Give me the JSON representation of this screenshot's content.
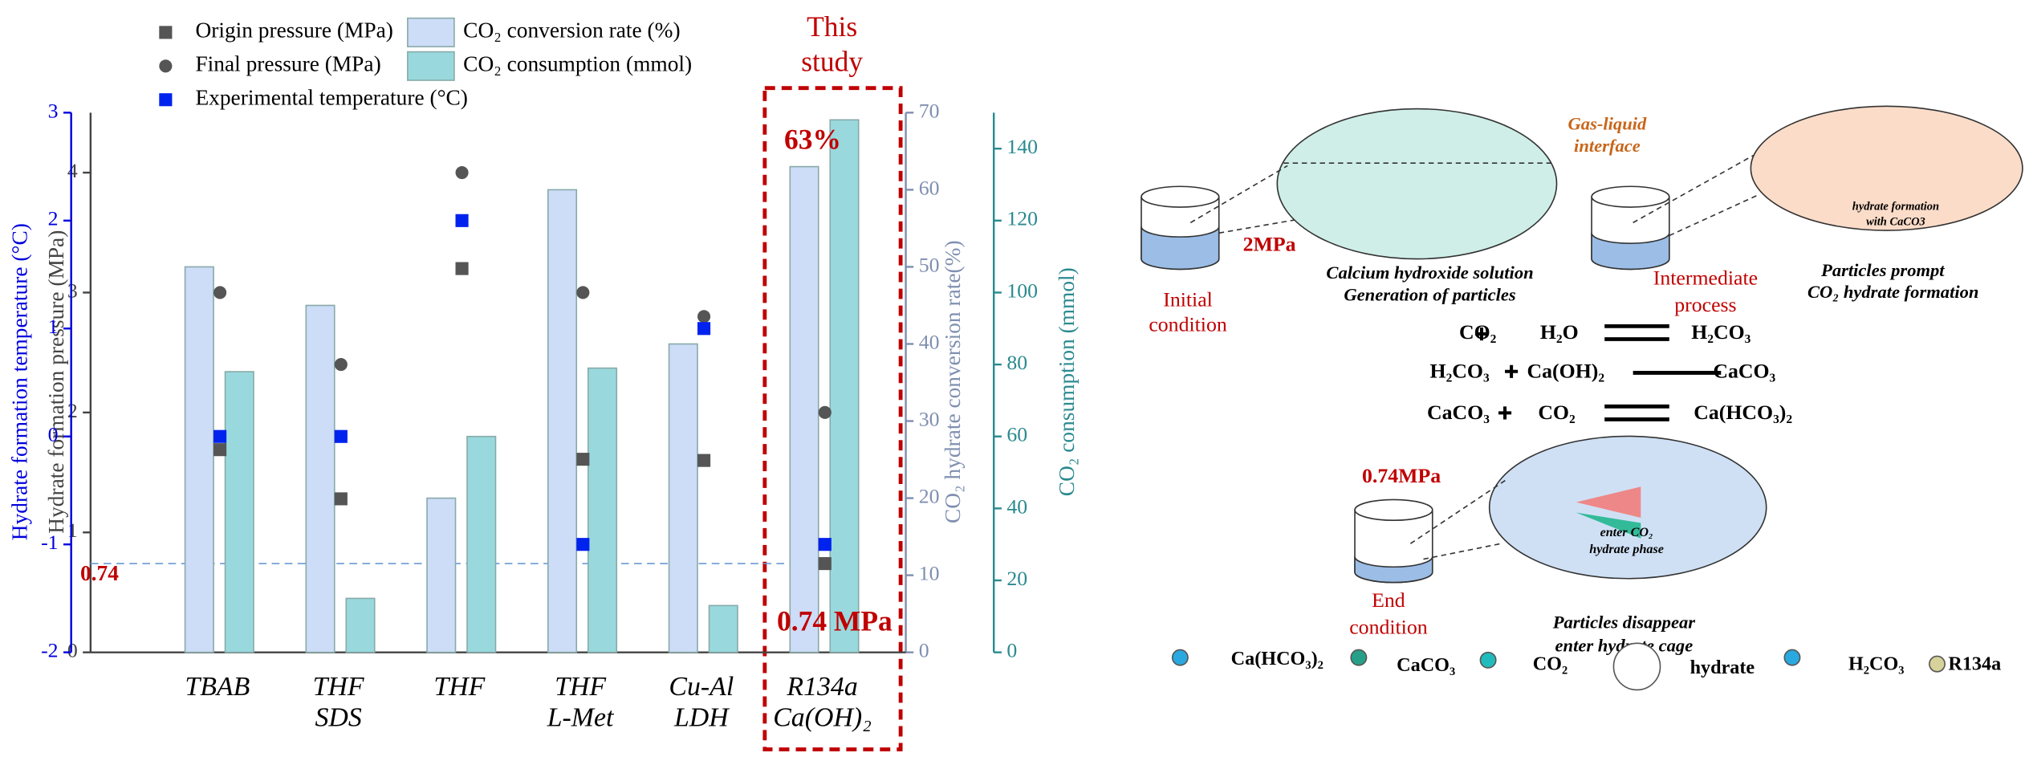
{
  "chart_data": {
    "type": "bar",
    "categories": [
      "TBAB",
      "THF SDS",
      "THF",
      "THF L-Met",
      "Cu-Al LDH",
      "R134a Ca(OH)₂"
    ],
    "axes": [
      {
        "label": "Hydrate formation pressure (MPa)",
        "lim": [
          0,
          4.5
        ],
        "ticks": [
          0,
          1,
          2,
          3,
          4
        ],
        "color": "#444444"
      },
      {
        "label": "Hydrate formation temperature (°C)",
        "lim": [
          -2,
          3
        ],
        "ticks": [
          -2,
          -1,
          0,
          1,
          2,
          3
        ],
        "color": "#0000dd"
      },
      {
        "label": "CO₂ hydrate conversion rate(%)",
        "lim": [
          0,
          70
        ],
        "ticks": [
          0,
          10,
          20,
          30,
          40,
          50,
          60,
          70
        ],
        "color": "#7f8fb0"
      },
      {
        "label": "CO₂ consumption (mmol)",
        "lim": [
          0,
          150
        ],
        "ticks": [
          0,
          20,
          40,
          60,
          80,
          100,
          120,
          140
        ],
        "color": "#2a8a8f"
      }
    ],
    "series": [
      {
        "name": "CO₂ conversion rate (%)",
        "color": "#cddcf7",
        "marker": "bar",
        "axis": 2,
        "values": [
          50,
          45,
          20,
          60,
          40,
          63
        ]
      },
      {
        "name": "CO₂ consumption (mmol)",
        "color": "#99d9dd",
        "marker": "bar",
        "axis": 3,
        "values": [
          78,
          15,
          60,
          79,
          13,
          148
        ]
      },
      {
        "name": "Origin pressure (MPa)",
        "color": "#555555",
        "marker": "square",
        "axis": 0,
        "values": [
          1.69,
          1.28,
          3.2,
          1.61,
          1.6,
          0.74
        ]
      },
      {
        "name": "Final pressure (MPa)",
        "color": "#555555",
        "marker": "circle",
        "axis": 0,
        "values": [
          3.0,
          2.4,
          4.0,
          3.0,
          2.8,
          2.0
        ]
      },
      {
        "name": "Experimental temperature (°C)",
        "color": "#0022ee",
        "marker": "square",
        "axis": 1,
        "values": [
          0,
          0,
          2,
          -1,
          1,
          -1
        ]
      }
    ],
    "hline": {
      "value": 0.74,
      "label": "0.74"
    },
    "annotations": [
      "This study",
      "63%",
      "0.74 MPa"
    ]
  },
  "diagram": {
    "interface": "Gas-liquid interface",
    "p_initial": "2MPa",
    "initial": "Initial condition",
    "step1": [
      "Calcium hydroxide solution",
      "Generation of particles"
    ],
    "intermediate": "Intermediate process",
    "step2": [
      "Particles prompt",
      "CO₂ hydrate formation"
    ],
    "inset2": [
      "hydrate formation",
      "with CaCO3"
    ],
    "reactions": [
      [
        "CO₂",
        "H₂O",
        "H₂CO₃"
      ],
      [
        "H₂CO₃",
        "Ca(OH)₂",
        "CaCO₃"
      ],
      [
        "CaCO₃",
        "CO₂",
        "Ca(HCO₃)₂"
      ]
    ],
    "p_end": "0.74MPa",
    "inset3": [
      "enter CO₂",
      "hydrate phase"
    ],
    "end": "End condition",
    "step3": [
      "Particles disappear",
      "enter hydrate cage"
    ],
    "legend": [
      "Ca(HCO₃)₂",
      "CaCO₃",
      "CO₂",
      "hydrate",
      "H₂CO₃",
      "R134a"
    ]
  }
}
